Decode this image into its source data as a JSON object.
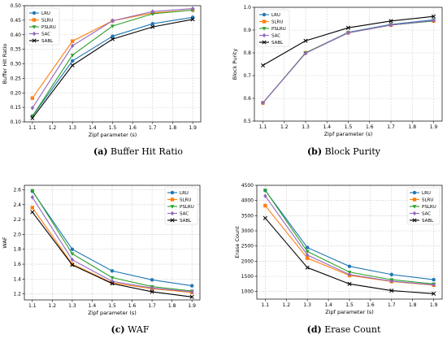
{
  "colors": {
    "LRU": "#1f77b4",
    "SLRU": "#ff7f0e",
    "PSLRU": "#2ca02c",
    "SAC": "#9467bd",
    "SABL": "#000000"
  },
  "chart_data": [
    {
      "type": "line",
      "panel_tag": "(a)",
      "caption": "Buffer Hit Ratio",
      "xlabel": "Zipf parameter (s)",
      "ylabel": "Buffer Hit Ratio",
      "xlim": [
        1.06,
        1.94
      ],
      "ylim": [
        0.1,
        0.5
      ],
      "xticks": [
        "1.1",
        "1.2",
        "1.3",
        "1.4",
        "1.5",
        "1.6",
        "1.7",
        "1.8",
        "1.9"
      ],
      "yticks": [
        "0.10",
        "0.15",
        "0.20",
        "0.25",
        "0.30",
        "0.35",
        "0.40",
        "0.45",
        "0.50"
      ],
      "grid": true,
      "legend_position": "top-left",
      "x": [
        1.1,
        1.3,
        1.5,
        1.7,
        1.9
      ],
      "series": [
        {
          "name": "LRU",
          "marker": "circle",
          "values": [
            0.12,
            0.31,
            0.395,
            0.438,
            0.46
          ]
        },
        {
          "name": "SLRU",
          "marker": "square",
          "values": [
            0.182,
            0.378,
            0.448,
            0.475,
            0.485
          ]
        },
        {
          "name": "PSLRU",
          "marker": "triangle",
          "values": [
            0.12,
            0.33,
            0.43,
            0.472,
            0.485
          ]
        },
        {
          "name": "SAC",
          "marker": "diamond",
          "values": [
            0.148,
            0.362,
            0.448,
            0.48,
            0.49
          ]
        },
        {
          "name": "SABL",
          "marker": "x",
          "values": [
            0.113,
            0.295,
            0.385,
            0.427,
            0.453
          ]
        }
      ]
    },
    {
      "type": "line",
      "panel_tag": "(b)",
      "caption": "Block Purity",
      "xlabel": "Zipf parameter (s)",
      "ylabel": "Block Purity",
      "xlim": [
        1.06,
        1.94
      ],
      "ylim": [
        0.5,
        1.0
      ],
      "xticks": [
        "1.1",
        "1.2",
        "1.3",
        "1.4",
        "1.5",
        "1.6",
        "1.7",
        "1.8",
        "1.9"
      ],
      "yticks": [
        "0.5",
        "0.6",
        "0.7",
        "0.8",
        "0.9",
        "1.0"
      ],
      "grid": true,
      "legend_position": "top-left",
      "x": [
        1.1,
        1.3,
        1.5,
        1.7,
        1.9
      ],
      "series": [
        {
          "name": "LRU",
          "marker": "circle",
          "values": [
            0.58,
            0.8,
            0.89,
            0.925,
            0.945
          ]
        },
        {
          "name": "SLRU",
          "marker": "square",
          "values": [
            0.58,
            0.8,
            0.888,
            0.922,
            0.94
          ]
        },
        {
          "name": "PSLRU",
          "marker": "triangle",
          "values": [
            0.58,
            0.8,
            0.888,
            0.922,
            0.94
          ]
        },
        {
          "name": "SAC",
          "marker": "diamond",
          "values": [
            0.58,
            0.798,
            0.888,
            0.922,
            0.942
          ]
        },
        {
          "name": "SABL",
          "marker": "x",
          "values": [
            0.745,
            0.853,
            0.91,
            0.94,
            0.96
          ]
        }
      ]
    },
    {
      "type": "line",
      "panel_tag": "(c)",
      "caption": "WAF",
      "xlabel": "Zipf parameter (s)",
      "ylabel": "WAF",
      "xlim": [
        1.06,
        1.94
      ],
      "ylim": [
        1.12,
        2.66
      ],
      "xticks": [
        "1.1",
        "1.2",
        "1.3",
        "1.4",
        "1.5",
        "1.6",
        "1.7",
        "1.8",
        "1.9"
      ],
      "yticks": [
        "1.2",
        "1.4",
        "1.6",
        "1.8",
        "2.0",
        "2.2",
        "2.4",
        "2.6"
      ],
      "grid": true,
      "legend_position": "top-right",
      "x": [
        1.1,
        1.3,
        1.5,
        1.7,
        1.9
      ],
      "series": [
        {
          "name": "LRU",
          "marker": "circle",
          "values": [
            2.58,
            1.8,
            1.51,
            1.39,
            1.31
          ]
        },
        {
          "name": "SLRU",
          "marker": "square",
          "values": [
            2.36,
            1.6,
            1.35,
            1.27,
            1.22
          ]
        },
        {
          "name": "PSLRU",
          "marker": "triangle",
          "values": [
            2.59,
            1.74,
            1.42,
            1.3,
            1.24
          ]
        },
        {
          "name": "SAC",
          "marker": "diamond",
          "values": [
            2.5,
            1.66,
            1.37,
            1.28,
            1.23
          ]
        },
        {
          "name": "SABL",
          "marker": "x",
          "values": [
            2.3,
            1.59,
            1.34,
            1.23,
            1.16
          ]
        }
      ]
    },
    {
      "type": "line",
      "panel_tag": "(d)",
      "caption": "Erase Count",
      "xlabel": "Zipf parameter (s)",
      "ylabel": "Erase Count",
      "xlim": [
        1.06,
        1.94
      ],
      "ylim": [
        750,
        4500
      ],
      "xticks": [
        "1.1",
        "1.2",
        "1.3",
        "1.4",
        "1.5",
        "1.6",
        "1.7",
        "1.8",
        "1.9"
      ],
      "yticks": [
        "1000",
        "1500",
        "2000",
        "2500",
        "3000",
        "3500",
        "4000",
        "4500"
      ],
      "grid": true,
      "legend_position": "top-right",
      "x": [
        1.1,
        1.3,
        1.5,
        1.7,
        1.9
      ],
      "series": [
        {
          "name": "LRU",
          "marker": "circle",
          "values": [
            4330,
            2450,
            1830,
            1560,
            1390
          ]
        },
        {
          "name": "SLRU",
          "marker": "square",
          "values": [
            3830,
            2100,
            1530,
            1330,
            1210
          ]
        },
        {
          "name": "PSLRU",
          "marker": "triangle",
          "values": [
            4340,
            2320,
            1640,
            1390,
            1250
          ]
        },
        {
          "name": "SAC",
          "marker": "diamond",
          "values": [
            4150,
            2200,
            1560,
            1340,
            1220
          ]
        },
        {
          "name": "SABL",
          "marker": "x",
          "values": [
            3420,
            1790,
            1250,
            1030,
            930
          ]
        }
      ]
    }
  ]
}
